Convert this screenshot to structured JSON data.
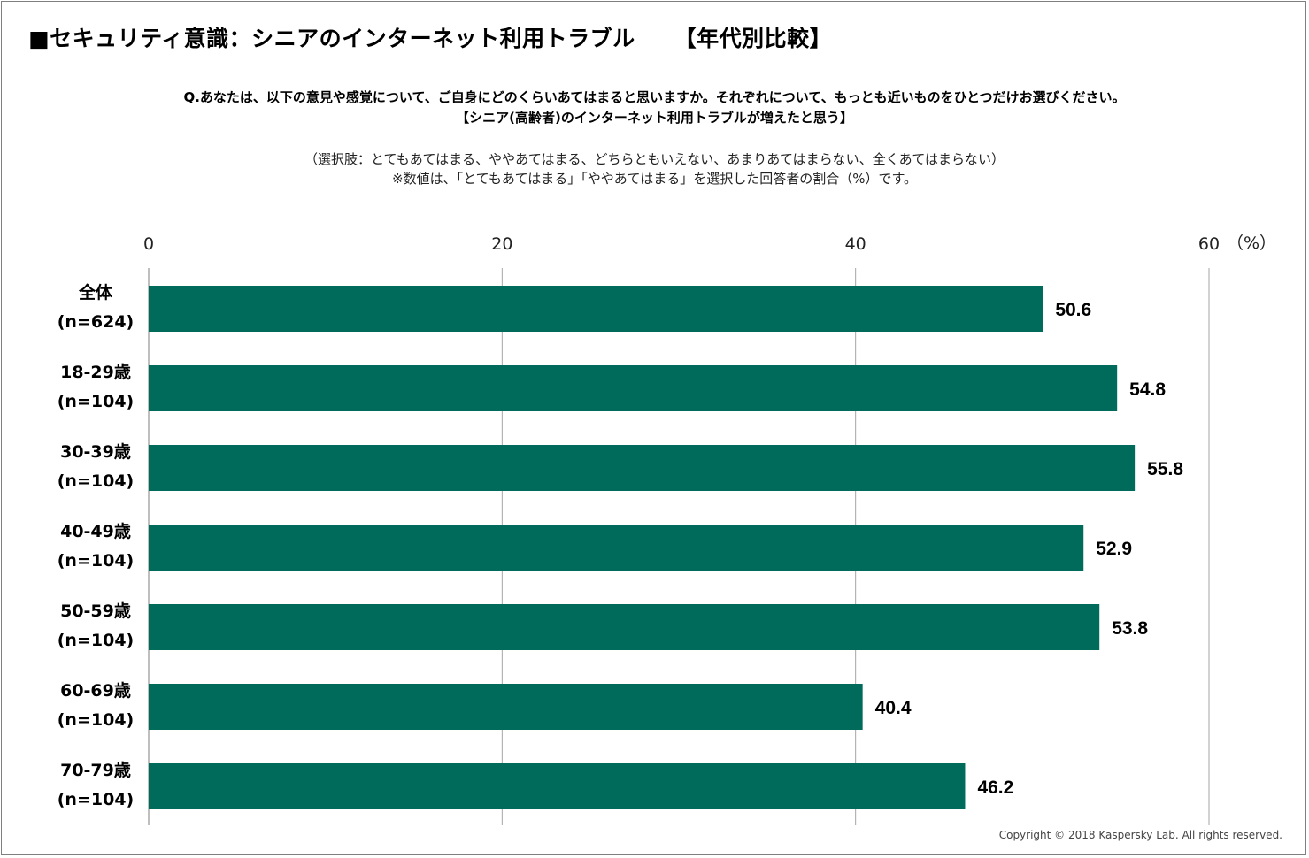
{
  "title": "■セキュリティ意識：シニアのインターネット利用トラブル",
  "title_tag": "【年代別比較】",
  "question_line1": "Q.あなたは、以下の意見や感覚について、ご自身にどのくらいあてはまると思いますか。それぞれについて、もっとも近いものをひとつだけお選びください。",
  "question_line2": "【シニア(高齢者)のインターネット利用トラブルが増えたと思う】",
  "note_line1": "（選択肢：とてもあてはまる、ややあてはまる、どちらともいえない、あまりあてはまらない、全くあてはまらない）",
  "note_line2": "※数値は、「とてもあてはまる」「ややあてはまる」を選択した回答者の割合（%）です。",
  "unit_label": "（%）",
  "copyright": "Copyright © 2018 Kaspersky Lab. All rights reserved.",
  "colors": {
    "bar": "#006b5a",
    "grid": "#a6a6a6"
  },
  "chart_data": {
    "type": "bar",
    "orientation": "horizontal",
    "categories": [
      {
        "name": "全体",
        "n": "(n=624)"
      },
      {
        "name": "18-29歳",
        "n": "(n=104)"
      },
      {
        "name": "30-39歳",
        "n": "(n=104)"
      },
      {
        "name": "40-49歳",
        "n": "(n=104)"
      },
      {
        "name": "50-59歳",
        "n": "(n=104)"
      },
      {
        "name": "60-69歳",
        "n": "(n=104)"
      },
      {
        "name": "70-79歳",
        "n": "(n=104)"
      }
    ],
    "values": [
      50.6,
      54.8,
      55.8,
      52.9,
      53.8,
      40.4,
      46.2
    ],
    "value_labels": [
      "50.6",
      "54.8",
      "55.8",
      "52.9",
      "53.8",
      "40.4",
      "46.2"
    ],
    "xlim": [
      0,
      60
    ],
    "xticks": [
      0,
      20,
      40,
      60
    ],
    "xtick_labels": [
      "0",
      "20",
      "40",
      "60"
    ],
    "grid": true,
    "axis_position": "top"
  }
}
